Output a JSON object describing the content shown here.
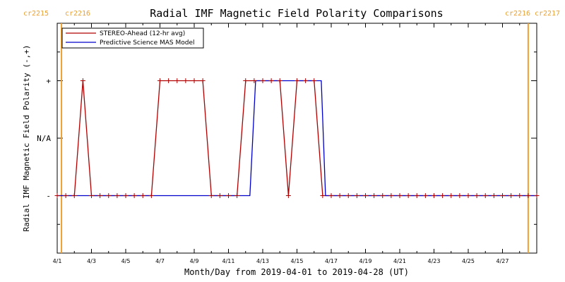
{
  "chart_data": {
    "type": "line",
    "title": "Radial IMF Magnetic Field Polarity Comparisons",
    "xlabel": "Month/Day from 2019-04-01 to 2019-04-28 (UT)",
    "ylabel": "Radial IMF Magnetic Field Polarity (-,+)",
    "x_start": "2019-04-01",
    "xlim": [
      "2019-04-01",
      "2019-04-29"
    ],
    "x_tick_labels": [
      "4/1",
      "4/3",
      "4/5",
      "4/7",
      "4/9",
      "4/11",
      "4/13",
      "4/15",
      "4/17",
      "4/19",
      "4/21",
      "4/23",
      "4/25",
      "4/27"
    ],
    "x_ticks": [
      "2019-04-01",
      "2019-04-03",
      "2019-04-05",
      "2019-04-07",
      "2019-04-09",
      "2019-04-11",
      "2019-04-13",
      "2019-04-15",
      "2019-04-17",
      "2019-04-19",
      "2019-04-21",
      "2019-04-23",
      "2019-04-25",
      "2019-04-27"
    ],
    "y_tick_labels": [
      "+",
      "N/A",
      "-"
    ],
    "y_ticks": [
      1,
      0,
      -1
    ],
    "ylim": [
      -2,
      2
    ],
    "rotation_labels": {
      "left_1": "cr2215",
      "left_2": "cr2216",
      "right_1": "cr2216",
      "right_2": "cr2217"
    },
    "rotation_markers": [
      "2019-04-01 06:00",
      "2019-04-28 12:00"
    ],
    "legend_position": "top-left",
    "series": [
      {
        "name": "STEREO-Ahead (12-hr avg)",
        "color": "#b00000",
        "marker": "plus",
        "points": [
          [
            "2019-04-01 00:00",
            -1
          ],
          [
            "2019-04-01 12:00",
            -1
          ],
          [
            "2019-04-02 00:00",
            -1
          ],
          [
            "2019-04-02 12:00",
            1
          ],
          [
            "2019-04-03 00:00",
            -1
          ],
          [
            "2019-04-03 12:00",
            -1
          ],
          [
            "2019-04-04 00:00",
            -1
          ],
          [
            "2019-04-04 12:00",
            -1
          ],
          [
            "2019-04-05 00:00",
            -1
          ],
          [
            "2019-04-05 12:00",
            -1
          ],
          [
            "2019-04-06 00:00",
            -1
          ],
          [
            "2019-04-06 12:00",
            -1
          ],
          [
            "2019-04-07 00:00",
            1
          ],
          [
            "2019-04-07 12:00",
            1
          ],
          [
            "2019-04-08 00:00",
            1
          ],
          [
            "2019-04-08 12:00",
            1
          ],
          [
            "2019-04-09 00:00",
            1
          ],
          [
            "2019-04-09 12:00",
            1
          ],
          [
            "2019-04-10 00:00",
            -1
          ],
          [
            "2019-04-10 12:00",
            -1
          ],
          [
            "2019-04-11 00:00",
            -1
          ],
          [
            "2019-04-11 12:00",
            -1
          ],
          [
            "2019-04-12 00:00",
            1
          ],
          [
            "2019-04-12 12:00",
            1
          ],
          [
            "2019-04-13 00:00",
            1
          ],
          [
            "2019-04-13 12:00",
            1
          ],
          [
            "2019-04-14 00:00",
            1
          ],
          [
            "2019-04-14 12:00",
            -1
          ],
          [
            "2019-04-15 00:00",
            1
          ],
          [
            "2019-04-15 12:00",
            1
          ],
          [
            "2019-04-16 00:00",
            1
          ],
          [
            "2019-04-16 12:00",
            -1
          ],
          [
            "2019-04-17 00:00",
            -1
          ],
          [
            "2019-04-17 12:00",
            -1
          ],
          [
            "2019-04-18 00:00",
            -1
          ],
          [
            "2019-04-18 12:00",
            -1
          ],
          [
            "2019-04-19 00:00",
            -1
          ],
          [
            "2019-04-19 12:00",
            -1
          ],
          [
            "2019-04-20 00:00",
            -1
          ],
          [
            "2019-04-20 12:00",
            -1
          ],
          [
            "2019-04-21 00:00",
            -1
          ],
          [
            "2019-04-21 12:00",
            -1
          ],
          [
            "2019-04-22 00:00",
            -1
          ],
          [
            "2019-04-22 12:00",
            -1
          ],
          [
            "2019-04-23 00:00",
            -1
          ],
          [
            "2019-04-23 12:00",
            -1
          ],
          [
            "2019-04-24 00:00",
            -1
          ],
          [
            "2019-04-24 12:00",
            -1
          ],
          [
            "2019-04-25 00:00",
            -1
          ],
          [
            "2019-04-25 12:00",
            -1
          ],
          [
            "2019-04-26 00:00",
            -1
          ],
          [
            "2019-04-26 12:00",
            -1
          ],
          [
            "2019-04-27 00:00",
            -1
          ],
          [
            "2019-04-27 12:00",
            -1
          ],
          [
            "2019-04-28 00:00",
            -1
          ],
          [
            "2019-04-28 12:00",
            -1
          ],
          [
            "2019-04-29 00:00",
            -1
          ]
        ]
      },
      {
        "name": "Predictive Science MAS Model",
        "color": "#0000cc",
        "marker": "none",
        "points": [
          [
            "2019-04-01 00:00",
            -1
          ],
          [
            "2019-04-12 06:00",
            -1
          ],
          [
            "2019-04-12 14:00",
            1
          ],
          [
            "2019-04-16 10:00",
            1
          ],
          [
            "2019-04-16 16:00",
            -1
          ],
          [
            "2019-04-29 00:00",
            -1
          ]
        ]
      }
    ]
  }
}
